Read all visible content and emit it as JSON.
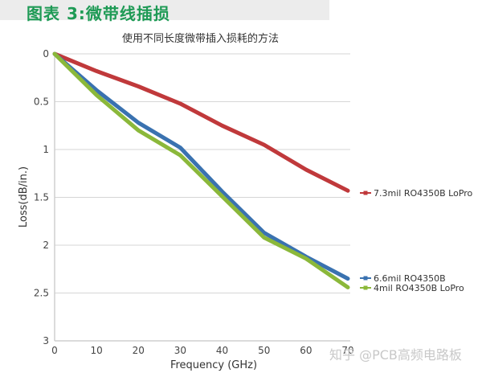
{
  "figure": {
    "label": "图表 3:微带线插损",
    "watermark": "知乎 @PCB高频电路板",
    "colors": {
      "header_text": "#1e9a55",
      "header_band": "#ececec",
      "grid": "#d6d6d6"
    }
  },
  "chart_data": {
    "type": "line",
    "title": "使用不同长度微带插入损耗的方法",
    "xlabel": "Frequency (GHz)",
    "ylabel": "Loss(dB/in.)",
    "xlim": [
      0,
      70
    ],
    "ylim": [
      0,
      3
    ],
    "y_inverted": true,
    "grid": "horizontal",
    "legend_position": "right",
    "x_ticks": [
      "0",
      "10",
      "20",
      "30",
      "40",
      "50",
      "60",
      "70"
    ],
    "y_ticks": [
      "0",
      "0.5",
      "1",
      "1.5",
      "2",
      "2.5",
      "3"
    ],
    "x": [
      0,
      10,
      20,
      30,
      40,
      50,
      60,
      70
    ],
    "series": [
      {
        "name": "7.3mil RO4350B LoPro",
        "color": "#c0393b",
        "values": [
          0.0,
          0.18,
          0.34,
          0.52,
          0.75,
          0.95,
          1.21,
          1.43
        ]
      },
      {
        "name": "6.6mil RO4350B",
        "color": "#3a72b0",
        "values": [
          0.0,
          0.38,
          0.72,
          0.98,
          1.44,
          1.87,
          2.12,
          2.35
        ]
      },
      {
        "name": "4mil RO4350B LoPro",
        "color": "#8bb83a",
        "values": [
          0.0,
          0.43,
          0.8,
          1.06,
          1.49,
          1.92,
          2.14,
          2.44
        ]
      }
    ]
  }
}
